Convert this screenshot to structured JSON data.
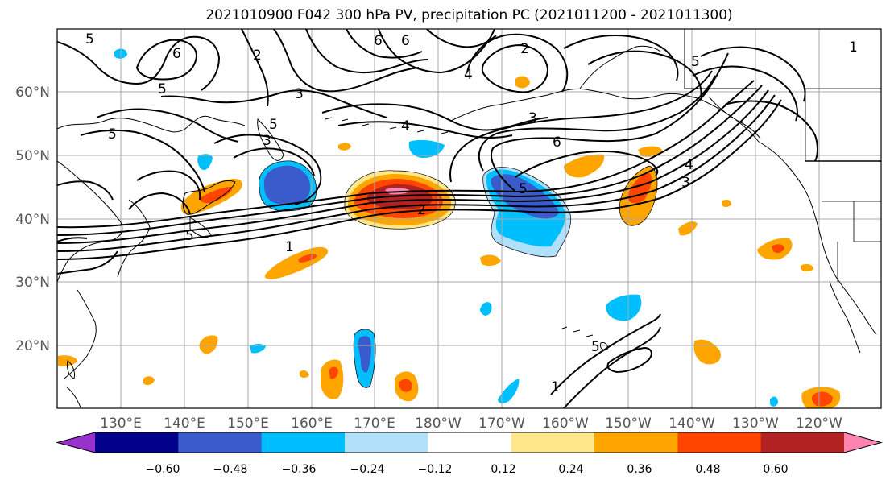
{
  "title": "2021010900 F042 300 hPa PV, precipitation PC (2021011200 - 2021011300)",
  "lat_labels": [
    "60°N",
    "50°N",
    "40°N",
    "30°N",
    "20°N"
  ],
  "lon_labels": [
    "130°E",
    "140°E",
    "150°E",
    "160°E",
    "170°E",
    "180°W",
    "170°W",
    "160°W",
    "150°W",
    "140°W",
    "130°W",
    "120°W"
  ],
  "colorbar": {
    "tick_labels": [
      "−0.60",
      "−0.48",
      "−0.36",
      "−0.24",
      "−0.12",
      "0.12",
      "0.24",
      "0.36",
      "0.48",
      "0.60"
    ],
    "colors": [
      "#9932cc",
      "#00008b",
      "#3a5bcc",
      "#00bfff",
      "#b0e0fa",
      "#ffffff",
      "#ffe88a",
      "#ffa500",
      "#ff4500",
      "#b22222",
      "#ff85b0"
    ]
  },
  "contour_labels": [
    "5",
    "6",
    "2",
    "6",
    "6",
    "5",
    "5",
    "3",
    "5",
    "3",
    "4",
    "3",
    "6",
    "5",
    "4",
    "2",
    "5",
    "1",
    "5",
    "3",
    "4",
    "1",
    "2",
    "1",
    "5"
  ]
}
